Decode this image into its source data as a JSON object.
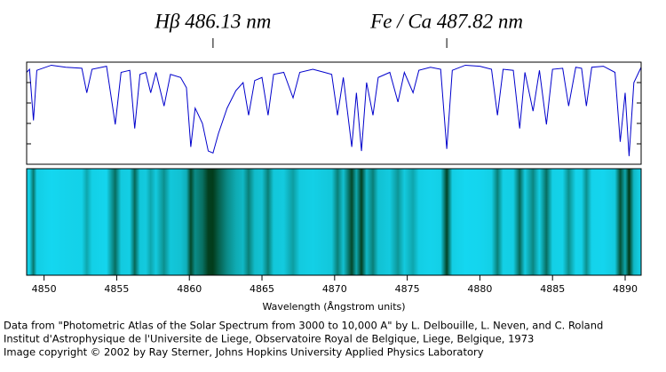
{
  "chart_data": {
    "type": "line",
    "annotations": [
      {
        "text": "Hβ  486.13 nm",
        "x": 4861.63
      },
      {
        "text": "Fe / Ca  487.82 nm",
        "x": 4877.72
      }
    ],
    "xlabel": "Wavelength (Ångstrom units)",
    "footer": [
      "Data from \"Photometric Atlas of the Solar Spectrum from 3000 to 10,000 A\" by L. Delbouille, L. Neven, and C. Roland",
      "Institut d'Astrophysique de l'Universite de Liege, Observatoire Royal de Belgique, Liege, Belgique, 1973",
      "Image copyright © 2002 by Ray Sterner, Johns Hopkins University Applied Physics Laboratory"
    ],
    "xlim": [
      4848.8,
      4891.1
    ],
    "xticks": [
      4850,
      4855,
      4860,
      4865,
      4870,
      4875,
      4880,
      4885,
      4890
    ],
    "ylim": [
      0,
      1
    ],
    "yticks": [
      0.2,
      0.4,
      0.6,
      0.8
    ],
    "x": [
      4848.8,
      4849.0,
      4849.27,
      4849.5,
      4850.5,
      4851.5,
      4852.6,
      4852.94,
      4853.3,
      4854.3,
      4854.9,
      4855.3,
      4855.9,
      4856.24,
      4856.6,
      4857.0,
      4857.34,
      4857.7,
      4858.26,
      4858.7,
      4859.4,
      4859.8,
      4860.1,
      4860.4,
      4860.9,
      4861.3,
      4861.63,
      4862.0,
      4862.6,
      4863.2,
      4863.7,
      4864.08,
      4864.5,
      4865.0,
      4865.42,
      4865.8,
      4866.5,
      4867.14,
      4867.6,
      4868.5,
      4869.3,
      4869.8,
      4870.2,
      4870.6,
      4871.18,
      4871.5,
      4871.85,
      4872.2,
      4872.64,
      4873.0,
      4873.8,
      4874.36,
      4874.8,
      4875.4,
      4875.8,
      4876.6,
      4877.3,
      4877.72,
      4878.1,
      4879.0,
      4880.0,
      4880.8,
      4881.21,
      4881.6,
      4882.3,
      4882.74,
      4883.1,
      4883.66,
      4884.1,
      4884.58,
      4885.0,
      4885.7,
      4886.11,
      4886.6,
      4887.0,
      4887.33,
      4887.7,
      4888.5,
      4889.3,
      4889.66,
      4890.0,
      4890.27,
      4890.6,
      4891.1
    ],
    "series": [
      {
        "color": "#0000cc",
        "values": [
          0.9,
          0.93,
          0.43,
          0.92,
          0.97,
          0.95,
          0.94,
          0.7,
          0.93,
          0.96,
          0.39,
          0.9,
          0.92,
          0.35,
          0.88,
          0.9,
          0.7,
          0.9,
          0.57,
          0.88,
          0.85,
          0.75,
          0.17,
          0.55,
          0.4,
          0.13,
          0.11,
          0.3,
          0.55,
          0.72,
          0.8,
          0.48,
          0.82,
          0.85,
          0.48,
          0.88,
          0.9,
          0.65,
          0.9,
          0.93,
          0.9,
          0.88,
          0.48,
          0.85,
          0.17,
          0.7,
          0.13,
          0.8,
          0.48,
          0.85,
          0.9,
          0.61,
          0.9,
          0.7,
          0.92,
          0.95,
          0.93,
          0.15,
          0.92,
          0.97,
          0.96,
          0.93,
          0.48,
          0.93,
          0.92,
          0.35,
          0.9,
          0.52,
          0.92,
          0.39,
          0.93,
          0.94,
          0.57,
          0.95,
          0.94,
          0.57,
          0.95,
          0.96,
          0.9,
          0.22,
          0.7,
          0.08,
          0.8,
          0.95
        ]
      }
    ]
  }
}
